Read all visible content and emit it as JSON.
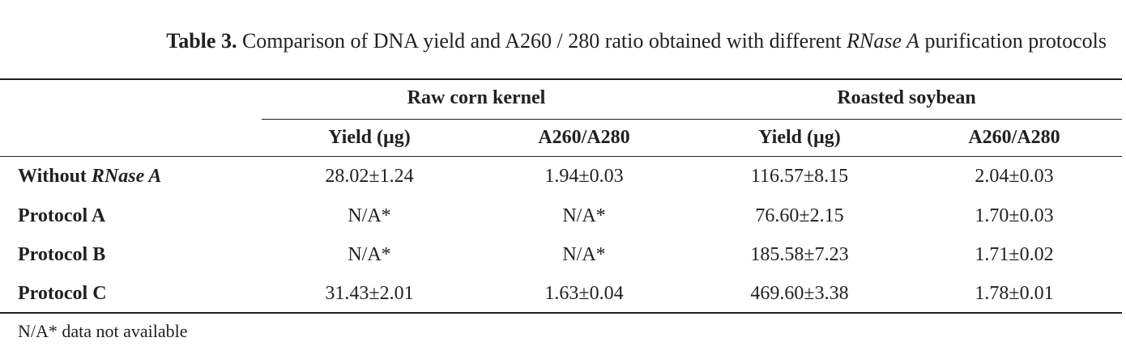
{
  "caption": {
    "label": "Table 3.",
    "text_before": " Comparison of DNA yield and A260 / 280 ratio obtained with different ",
    "text_italic": "RNase A",
    "text_after": " purification protocols"
  },
  "groups": [
    "Raw corn kernel",
    "Roasted soybean"
  ],
  "columns": [
    "Yield (µg)",
    "A260/A280",
    "Yield (µg)",
    "A260/A280"
  ],
  "rows": [
    {
      "label": "Without ",
      "label_italic": "RNase A",
      "values": [
        "28.02±1.24",
        "1.94±0.03",
        "116.57±8.15",
        "2.04±0.03"
      ]
    },
    {
      "label": "Protocol A",
      "label_italic": "",
      "values": [
        "N/A*",
        "N/A*",
        "76.60±2.15",
        "1.70±0.03"
      ]
    },
    {
      "label": "Protocol B",
      "label_italic": "",
      "values": [
        "N/A*",
        "N/A*",
        "185.58±7.23",
        "1.71±0.02"
      ]
    },
    {
      "label": "Protocol C",
      "label_italic": "",
      "values": [
        "31.43±2.01",
        "1.63±0.04",
        "469.60±3.38",
        "1.78±0.01"
      ]
    }
  ],
  "footnote": "N/A* data not available"
}
